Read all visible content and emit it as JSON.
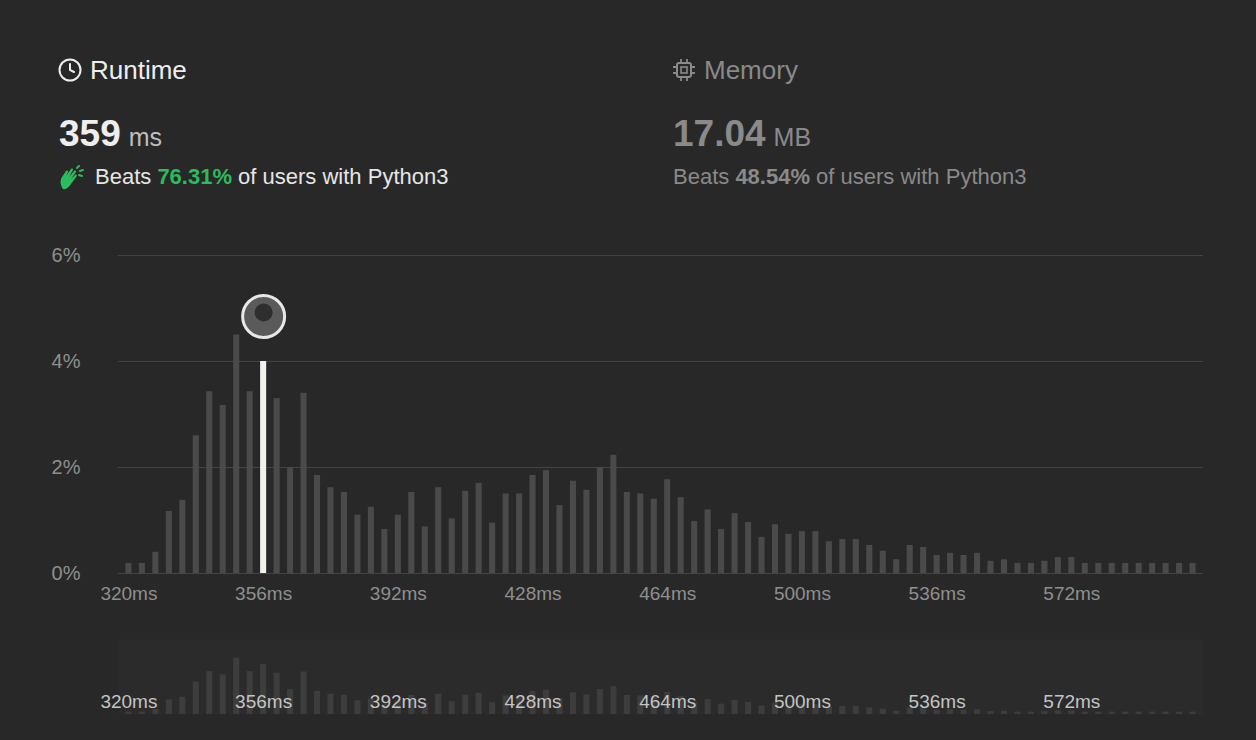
{
  "header": {
    "runtime": {
      "label": "Runtime",
      "value": "359",
      "unit": "ms",
      "beats_prefix": "Beats",
      "beats": "76.31%",
      "beats_suffix": "of users with Python3"
    },
    "memory": {
      "label": "Memory",
      "value": "17.04",
      "unit": "MB",
      "beats_prefix": "Beats",
      "beats": "48.54%",
      "beats_suffix": "of users with Python3"
    }
  },
  "chart_data": [
    {
      "type": "bar",
      "categories": [
        "320ms",
        null,
        null,
        null,
        null,
        null,
        null,
        null,
        null,
        null,
        "356ms",
        null,
        null,
        null,
        null,
        null,
        null,
        null,
        null,
        null,
        "392ms",
        null,
        null,
        null,
        null,
        null,
        null,
        null,
        null,
        null,
        "428ms",
        null,
        null,
        null,
        null,
        null,
        null,
        null,
        null,
        null,
        "464ms",
        null,
        null,
        null,
        null,
        null,
        null,
        null,
        null,
        null,
        "500ms",
        null,
        null,
        null,
        null,
        null,
        null,
        null,
        null,
        null,
        "536ms",
        null,
        null,
        null,
        null,
        null,
        null,
        null,
        null,
        null,
        "572ms",
        null,
        null,
        null,
        null,
        null,
        null,
        null,
        null,
        null
      ],
      "values": [
        0.19,
        0.19,
        0.4,
        1.17,
        1.38,
        2.6,
        3.43,
        3.17,
        4.5,
        3.43,
        4.0,
        3.3,
        2.0,
        3.4,
        1.85,
        1.62,
        1.53,
        1.1,
        1.25,
        0.83,
        1.1,
        1.53,
        0.88,
        1.62,
        1.03,
        1.55,
        1.7,
        0.95,
        1.5,
        1.5,
        1.85,
        1.94,
        1.28,
        1.74,
        1.57,
        2.0,
        2.23,
        1.53,
        1.5,
        1.4,
        1.77,
        1.43,
        0.98,
        1.2,
        0.83,
        1.13,
        0.96,
        0.68,
        0.92,
        0.74,
        0.79,
        0.79,
        0.6,
        0.64,
        0.64,
        0.53,
        0.42,
        0.26,
        0.53,
        0.49,
        0.34,
        0.38,
        0.34,
        0.38,
        0.23,
        0.26,
        0.19,
        0.19,
        0.23,
        0.3,
        0.3,
        0.19,
        0.19,
        0.19,
        0.19,
        0.19,
        0.19,
        0.19,
        0.19,
        0.19
      ],
      "colors": [
        "#4a4a4a",
        "#4a4a4a",
        "#4a4a4a",
        "#4a4a4a",
        "#4a4a4a",
        "#4a4a4a",
        "#4a4a4a",
        "#4a4a4a",
        "#4a4a4a",
        "#4a4a4a",
        "#f2f1ec",
        "#4a4a4a",
        "#4a4a4a",
        "#4a4a4a",
        "#4a4a4a",
        "#4a4a4a",
        "#4a4a4a",
        "#4a4a4a",
        "#4a4a4a",
        "#4a4a4a",
        "#4a4a4a",
        "#4a4a4a",
        "#4a4a4a",
        "#4a4a4a",
        "#4a4a4a",
        "#4a4a4a",
        "#4a4a4a",
        "#4a4a4a",
        "#4a4a4a",
        "#4a4a4a",
        "#4a4a4a",
        "#4a4a4a",
        "#4a4a4a",
        "#4a4a4a",
        "#4a4a4a",
        "#4a4a4a",
        "#4a4a4a",
        "#4a4a4a",
        "#4a4a4a",
        "#4a4a4a",
        "#4a4a4a",
        "#4a4a4a",
        "#4a4a4a",
        "#4a4a4a",
        "#4a4a4a",
        "#4a4a4a",
        "#4a4a4a",
        "#4a4a4a",
        "#4a4a4a",
        "#4a4a4a",
        "#4a4a4a",
        "#4a4a4a",
        "#4a4a4a",
        "#4a4a4a",
        "#4a4a4a",
        "#4a4a4a",
        "#4a4a4a",
        "#4a4a4a",
        "#4a4a4a",
        "#4a4a4a",
        "#4a4a4a",
        "#4a4a4a",
        "#4a4a4a",
        "#4a4a4a",
        "#4a4a4a",
        "#4a4a4a",
        "#4a4a4a",
        "#4a4a4a",
        "#4a4a4a",
        "#4a4a4a",
        "#4a4a4a",
        "#4a4a4a",
        "#4a4a4a",
        "#4a4a4a",
        "#4a4a4a",
        "#4a4a4a",
        "#4a4a4a",
        "#4a4a4a",
        "#4a4a4a",
        "#4a4a4a"
      ],
      "ylim": [
        0,
        6
      ],
      "yticks": [
        {
          "value": 0,
          "label": "0%"
        },
        {
          "value": 2,
          "label": "2%"
        },
        {
          "value": 4,
          "label": "4%"
        },
        {
          "value": 6,
          "label": "6%"
        }
      ],
      "grid": true
    },
    {
      "type": "bar",
      "categories": [
        "320ms",
        null,
        null,
        null,
        null,
        null,
        null,
        null,
        null,
        null,
        "356ms",
        null,
        null,
        null,
        null,
        null,
        null,
        null,
        null,
        null,
        "392ms",
        null,
        null,
        null,
        null,
        null,
        null,
        null,
        null,
        null,
        "428ms",
        null,
        null,
        null,
        null,
        null,
        null,
        null,
        null,
        null,
        "464ms",
        null,
        null,
        null,
        null,
        null,
        null,
        null,
        null,
        null,
        "500ms",
        null,
        null,
        null,
        null,
        null,
        null,
        null,
        null,
        null,
        "536ms",
        null,
        null,
        null,
        null,
        null,
        null,
        null,
        null,
        null,
        "572ms",
        null,
        null,
        null,
        null,
        null,
        null,
        null,
        null,
        null
      ],
      "values": [
        0.19,
        0.19,
        0.4,
        1.17,
        1.38,
        2.6,
        3.43,
        3.17,
        4.5,
        3.43,
        4.0,
        3.3,
        2.0,
        3.4,
        1.85,
        1.62,
        1.53,
        1.1,
        1.25,
        0.83,
        1.1,
        1.53,
        0.88,
        1.62,
        1.03,
        1.55,
        1.7,
        0.95,
        1.5,
        1.5,
        1.85,
        1.94,
        1.28,
        1.74,
        1.57,
        2.0,
        2.23,
        1.53,
        1.5,
        1.4,
        1.77,
        1.43,
        0.98,
        1.2,
        0.83,
        1.13,
        0.96,
        0.68,
        0.92,
        0.74,
        0.79,
        0.79,
        0.6,
        0.64,
        0.64,
        0.53,
        0.42,
        0.26,
        0.53,
        0.49,
        0.34,
        0.38,
        0.34,
        0.38,
        0.23,
        0.26,
        0.19,
        0.19,
        0.23,
        0.3,
        0.3,
        0.19,
        0.19,
        0.19,
        0.19,
        0.19,
        0.19,
        0.19,
        0.19,
        0.19
      ],
      "color": "#3d3d3d",
      "ylim": [
        0,
        6
      ],
      "tick_labels": "x"
    }
  ]
}
